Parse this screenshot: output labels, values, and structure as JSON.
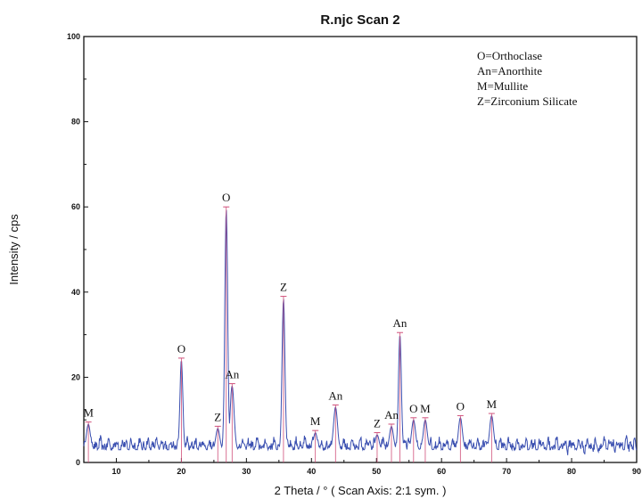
{
  "chart_data": {
    "type": "line",
    "title": "R.njc Scan 2",
    "xlabel": "2 Theta / °   ( Scan Axis: 2:1 sym. )",
    "ylabel": "Intensity / cps",
    "xlim": [
      5,
      90
    ],
    "ylim": [
      0,
      100
    ],
    "x_ticks": [
      "10",
      "20",
      "30",
      "40",
      "50",
      "60",
      "70",
      "80",
      "90"
    ],
    "y_ticks": [
      "0",
      "20",
      "40",
      "60",
      "80",
      "100"
    ],
    "grid": false,
    "line_color": "#3a4fb0",
    "marker_color": "#d0507a",
    "legend": {
      "placement": "top-right",
      "entries": [
        "O=Orthoclase",
        "An=Anorthite",
        "M=Mullite",
        "Z=Zirconium Silicate"
      ]
    },
    "peaks": [
      {
        "x": 5.7,
        "y": 9.5,
        "label": "M"
      },
      {
        "x": 20.0,
        "y": 24.5,
        "label": "O"
      },
      {
        "x": 25.6,
        "y": 8.5,
        "label": "Z"
      },
      {
        "x": 26.9,
        "y": 60.0,
        "label": "O"
      },
      {
        "x": 27.8,
        "y": 18.5,
        "label": "An"
      },
      {
        "x": 35.7,
        "y": 39.0,
        "label": "Z"
      },
      {
        "x": 40.6,
        "y": 7.5,
        "label": "M"
      },
      {
        "x": 43.7,
        "y": 13.5,
        "label": "An"
      },
      {
        "x": 50.1,
        "y": 7.0,
        "label": "Z"
      },
      {
        "x": 52.3,
        "y": 9.0,
        "label": "An"
      },
      {
        "x": 53.6,
        "y": 30.5,
        "label": "An"
      },
      {
        "x": 55.7,
        "y": 10.5,
        "label": "O"
      },
      {
        "x": 57.5,
        "y": 10.5,
        "label": "M"
      },
      {
        "x": 62.9,
        "y": 11.0,
        "label": "O"
      },
      {
        "x": 67.7,
        "y": 11.5,
        "label": "M"
      }
    ],
    "baseline_noise_range": [
      1.5,
      6.5
    ]
  }
}
